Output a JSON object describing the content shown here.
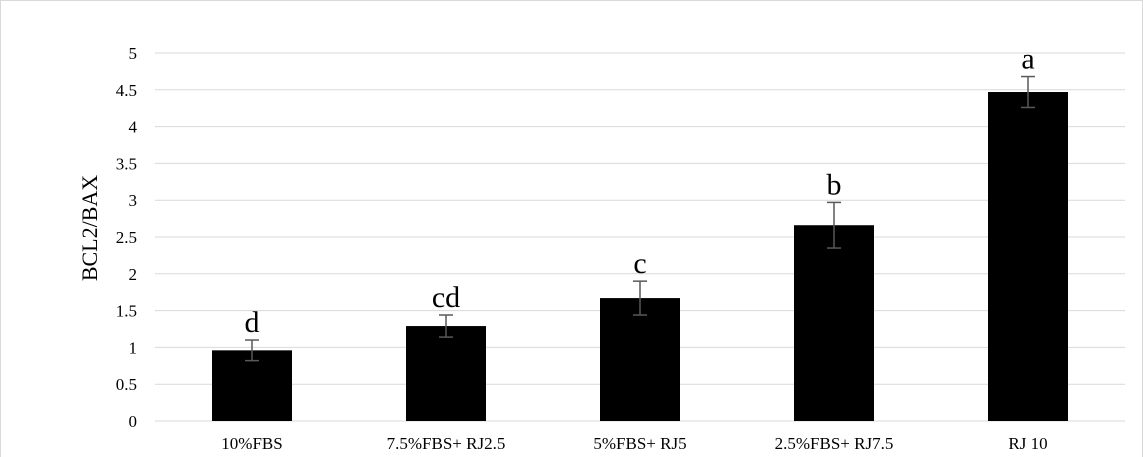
{
  "chart_data": {
    "type": "bar",
    "title": "",
    "xlabel": "",
    "ylabel": "BCL2/BAX",
    "ylim": [
      0,
      5
    ],
    "y_ticks": [
      "0",
      "0.5",
      "1",
      "1.5",
      "2",
      "2.5",
      "3",
      "3.5",
      "4",
      "4.5",
      "5"
    ],
    "y_tick_values": [
      0,
      0.5,
      1,
      1.5,
      2,
      2.5,
      3,
      3.5,
      4,
      4.5,
      5
    ],
    "grid": true,
    "legend": "none",
    "categories": [
      "10%FBS",
      "7.5%FBS+ RJ2.5",
      "5%FBS+ RJ5",
      "2.5%FBS+ RJ7.5",
      "RJ 10"
    ],
    "values": [
      0.96,
      1.29,
      1.67,
      2.66,
      4.47
    ],
    "error_bars": [
      0.14,
      0.15,
      0.23,
      0.31,
      0.21
    ],
    "significance_labels": [
      "d",
      "cd",
      "c",
      "b",
      "a"
    ],
    "colors": {
      "bar": "#000000",
      "grid": "#d9d9d9",
      "error_bar": "#595959",
      "frame": "#d9d9d9"
    }
  }
}
